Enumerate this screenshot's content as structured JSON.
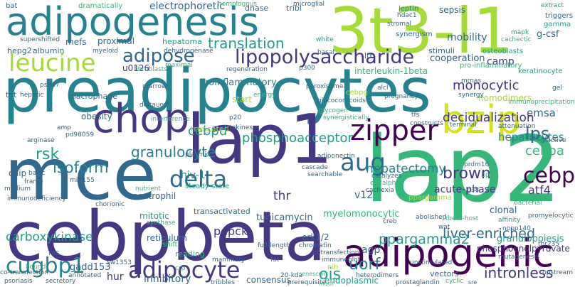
{
  "colors": {
    "background": "#ffffff",
    "c1": "#440154",
    "c2": "#453781",
    "c3": "#31688e",
    "c4": "#26828e",
    "c5": "#1f9e89",
    "c6": "#35b779",
    "c7": "#6ece58",
    "c8": "#a5db36",
    "c9": "#d2e21b"
  },
  "words": {
    "preadipocytes": "preadipocytes",
    "lap1": "lap1",
    "mce": "mce",
    "lap2": "lap2",
    "cebpbeta": "cebpbeta",
    "t3l1": "3t3-l1",
    "adipogenesis": "adipogenesis",
    "adipogenic": "adipogenic",
    "chop": "chop",
    "bzip": "bzip",
    "zipper": "zipper",
    "delta": "delta",
    "aug": "aug",
    "cebp": "cebp",
    "adipocyte": "adipocyte",
    "cugbp1": "cugbp1",
    "leucine": "leucine",
    "lipopolysaccharide": "lipopolysaccharide",
    "adipose": "adipose",
    "translation": "translation",
    "rsk": "rsk",
    "granulocyte": "granulocyte",
    "phosphoacceptor": "phosphoacceptor",
    "cebpd": "cebpd",
    "isoform": "isoform",
    "lps": "lps",
    "cebpa": "cebpa",
    "brown": "brown",
    "hepatectomy": "hepatectomy",
    "liver_enriched": "liver-enriched",
    "ppargamma2": "ppargamma2",
    "intronless": "intronless",
    "uorf": "uorf",
    "ois": "ois",
    "electrophoretic": "electrophoretic",
    "mobility": "mobility",
    "cooperation": "cooperation",
    "camp": "camp",
    "monocytic": "monocytic",
    "hepatocytes": "hepatocytes",
    "emsa": "emsa",
    "decidualization": "decidualization",
    "atf4": "atf4",
    "acute_phase": "acute-phase",
    "thr": "thr",
    "pepck": "pepck",
    "carboxykinase": "carboxykinase",
    "hiv1": "hiv-1",
    "v12": "v12",
    "myelomonocytic": "myelomonocytic",
    "tunicamycin": "tunicamycin",
    "erk12": "erk1/2",
    "phosphoenolpyruvate": "phosphoenolpyruvate",
    "granulopoiesis": "granulopoiesis",
    "clonal": "clonal",
    "hur": "hur",
    "agp": "agp",
    "inhibitory": "inhibitory",
    "endoplasmic": "endoplasmic",
    "consensus": "consensus",
    "gadd153": "gadd153",
    "reticulum": "reticulum",
    "mitotic": "mitotic",
    "transactivated": "transactivated",
    "neutrophil": "neutrophil",
    "truncated": "truncated",
    "homodimers": "homodimers",
    "ltr": "ltr",
    "u0126": "u0126",
    "proximal": "proximal",
    "mefs": "mefs",
    "albumin": "albumin",
    "hepg2": "hepg2",
    "hepatoma": "hepatoma",
    "sepsis": "sepsis",
    "stimuli": "stimuli",
    "gcsf": "g-csf",
    "interleukin1beta": "interleukin-1beta",
    "proinflammatory": "proinflammatory",
    "macrophage": "macrophage",
    "obesity": "obesity",
    "chip": "chip",
    "tat": "tat",
    "steady_state": "steady-state",
    "dnase": "dnase",
    "tribl": "tribl",
    "synergism": "synergism",
    "bat": "bat",
    "dramatically": "dramatically",
    "homologous": "homologous",
    "microglial": "microglial",
    "leptin": "leptin",
    "extract": "extract",
    "triggers": "triggers",
    "gamma": "gamma",
    "hdac1": "hdac1",
    "stromal": "stromal",
    "mapk": "mapk",
    "cachectic": "cachectic",
    "supershifted": "supershifted",
    "myeloid": "myeloid",
    "dehydrogenase": "dehydrogenase",
    "white": "white",
    "basal": "basal",
    "osteoblasts": "osteoblasts",
    "pro_inflammatory": "pro-inflammatory",
    "keratinocyte": "keratinocyte",
    "fibroblasts": "fibroblasts",
    "maximal": "maximal",
    "regeneration": "regeneration",
    "p300": "p300",
    "marrow": "marrow",
    "ps937": "ps937",
    "hepatic": "hepatic",
    "peroxisome": "peroxisome",
    "glucocorticoids": "glucocorticoids",
    "mrnas": "mrnas",
    "synergy": "synergy",
    "alcl": "alcl",
    "pregnancy": "pregnancy",
    "start": "start",
    "cebpg": "cebpg",
    "immunoprecipitation": "immunoprecipitation",
    "gel": "gel",
    "energy": "energy",
    "deltauorf": "deltauorf",
    "glycogen": "glycogen",
    "tfs": "tfs",
    "medium": "medium",
    "arginase": "arginase",
    "amp": "amp",
    "pd98059": "pd98059",
    "cytokines": "cytokines",
    "interference": "interference",
    "p20": "p20",
    "synergistically": "synergistically",
    "constructs": "constructs",
    "terminal": "terminal",
    "attenuation": "attenuation",
    "inactive": "inactive",
    "immunodeficiency": "immunodeficiency",
    "frame": "frame",
    "basic": "basic",
    "mir155": "mir-155",
    "nutrient": "nutrient",
    "plasmid": "plasmid",
    "cascade": "cascade",
    "searchable": "searchable",
    "adiponectin": "adiponectin",
    "catalyzes": "catalyzes",
    "eif2alpha": "eif2alpha",
    "cachexia": "cachexia",
    "pparagamma": "ppargamma",
    "p38": "p38",
    "bp": "bp",
    "bacterial": "bacterial",
    "prdm16": "prdm16",
    "chorionic": "chorionic",
    "synthase": "synthase",
    "chromatin": "chromatin",
    "cotransfection": "cotransfection",
    "creb": "creb",
    "abolished": "abolished",
    "affinity": "affinity",
    "nopp140": "nopp140",
    "itbeta_host": "1tbeta-host",
    "wat": "wat",
    "promyelocytic": "promyelocytic",
    "shift": "shift",
    "reading": "reading",
    "full_length": "full-length",
    "ras": "ras",
    "nih": "nih",
    "heterodimers": "heterodimers",
    "unstimulated": "unstimulated",
    "mutagenesis": "mutagenesis",
    "thr235": "thr235",
    "immunoblot": "immunoblot",
    "senescent": "senescent",
    "motif": "motif",
    "mammary": "mammary",
    "annotated": "annotated",
    "sw1353": "sw1353",
    "fat": "fat",
    "co_transfection": "co-transfection",
    "bound": "bound",
    "crp": "crp",
    "tribbles": "tribbles",
    "vectors": "vectors",
    "cyclic": "cyclic",
    "upstream": "upstream",
    "psoriasis": "psoriasis",
    "secretory": "secretory",
    "prerequisite": "prerequisite",
    "prostaglandin": "prostaglandin",
    "sre": "sre",
    "k20": "20-kda",
    "interleukin6_small": "heterodimers"
  }
}
